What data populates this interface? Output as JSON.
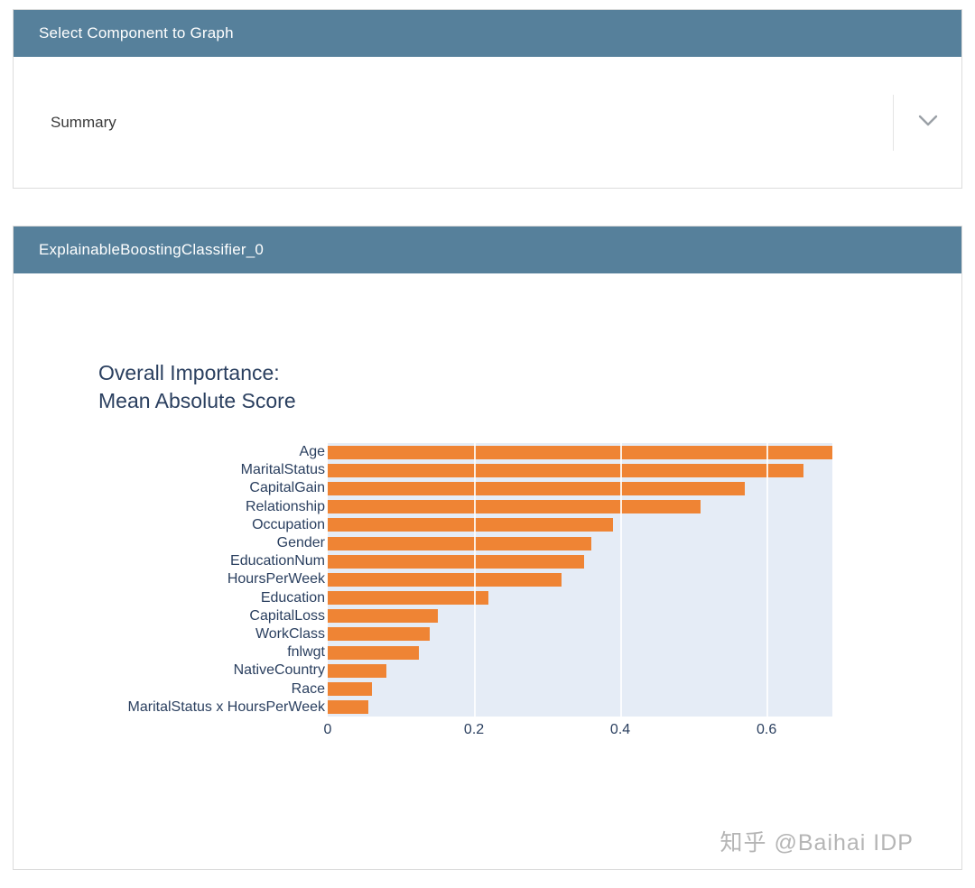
{
  "page": {
    "watermark": "知乎 @Baihai IDP"
  },
  "select_card": {
    "header": "Select Component to Graph",
    "dropdown": {
      "value": "Summary"
    }
  },
  "model_card": {
    "header": "ExplainableBoostingClassifier_0"
  },
  "chart_data": {
    "type": "bar",
    "orientation": "horizontal",
    "title_lines": [
      "Overall Importance:",
      "Mean Absolute Score"
    ],
    "categories": [
      "Age",
      "MaritalStatus",
      "CapitalGain",
      "Relationship",
      "Occupation",
      "Gender",
      "EducationNum",
      "HoursPerWeek",
      "Education",
      "CapitalLoss",
      "WorkClass",
      "fnlwgt",
      "NativeCountry",
      "Race",
      "MaritalStatus x HoursPerWeek"
    ],
    "values": [
      0.69,
      0.65,
      0.57,
      0.51,
      0.39,
      0.36,
      0.35,
      0.32,
      0.22,
      0.15,
      0.14,
      0.125,
      0.08,
      0.06,
      0.055
    ],
    "xlabel": "",
    "ylabel": "",
    "x_ticks": [
      0,
      0.2,
      0.4,
      0.6
    ],
    "xlim": [
      0,
      0.69
    ],
    "bar_color": "#ef8434",
    "plot_bg": "#e5ecf6",
    "grid": true,
    "legend": "none"
  },
  "colors": {
    "header_bg": "#56809b",
    "header_text": "#ffffff",
    "axis_text": "#2a3f5f",
    "card_border": "#dcdcdc"
  }
}
